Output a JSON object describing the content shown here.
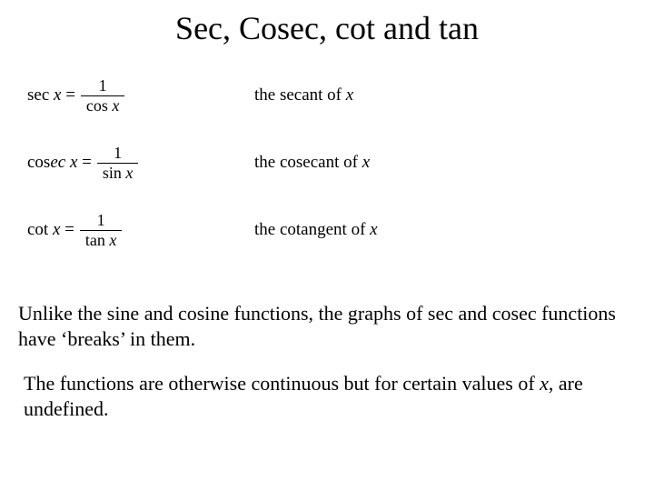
{
  "title": "Sec, Cosec, cot and tan",
  "equations": [
    {
      "lhs_plain": "sec",
      "lhs_var": "x",
      "eq": " = ",
      "num": "1",
      "den_plain": "cos",
      "den_var": "x",
      "desc_prefix": "the secant of ",
      "desc_var": "x"
    },
    {
      "lhs_plain": "cos",
      "lhs_italic_mid": "ec",
      "lhs_var": "x",
      "eq": " = ",
      "num": "1",
      "den_plain": "sin",
      "den_var": "x",
      "desc_prefix": "the cosecant of ",
      "desc_var": "x"
    },
    {
      "lhs_plain": "cot",
      "lhs_var": "x",
      "eq": " = ",
      "num": "1",
      "den_plain": "tan",
      "den_var": "x",
      "desc_prefix": "the cotangent of  ",
      "desc_var": "x"
    }
  ],
  "paragraph1": "Unlike the sine and cosine functions, the graphs of sec and cosec functions have ‘breaks’ in them.",
  "paragraph2_a": "The functions are otherwise continuous but for certain values of ",
  "paragraph2_var": "x",
  "paragraph2_b": ", are undefined.",
  "style": {
    "background": "#ffffff",
    "text_color": "#000000",
    "title_fontsize": 36,
    "body_fontsize": 22,
    "eq_fontsize": 19,
    "font_family": "Times New Roman"
  }
}
